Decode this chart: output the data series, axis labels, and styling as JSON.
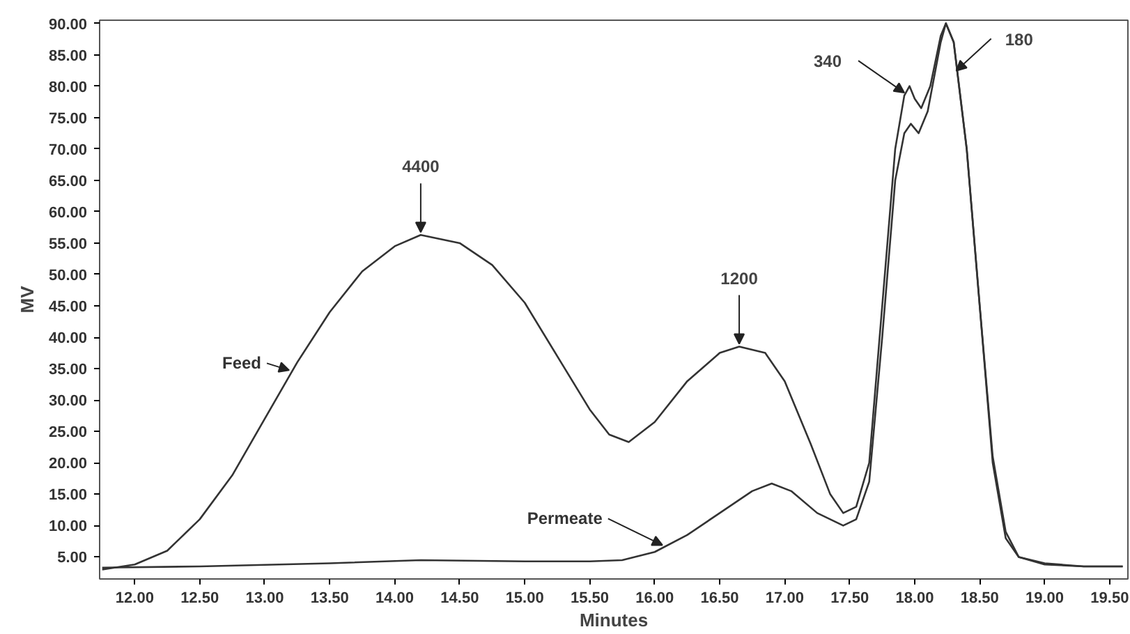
{
  "chart_data": {
    "type": "line",
    "xlabel": "Minutes",
    "ylabel": "MV",
    "xlim": [
      11.73,
      19.64
    ],
    "ylim": [
      1.5,
      90.5
    ],
    "xticks": [
      {
        "value": 12,
        "label": "12.00"
      },
      {
        "value": 12.5,
        "label": "12.50"
      },
      {
        "value": 13,
        "label": "13.00"
      },
      {
        "value": 13.5,
        "label": "13.50"
      },
      {
        "value": 14,
        "label": "14.00"
      },
      {
        "value": 14.5,
        "label": "14.50"
      },
      {
        "value": 15,
        "label": "15.00"
      },
      {
        "value": 15.5,
        "label": "15.50"
      },
      {
        "value": 16,
        "label": "16.00"
      },
      {
        "value": 16.5,
        "label": "16.50"
      },
      {
        "value": 17,
        "label": "17.00"
      },
      {
        "value": 17.5,
        "label": "17.50"
      },
      {
        "value": 18,
        "label": "18.00"
      },
      {
        "value": 18.5,
        "label": "18.50"
      },
      {
        "value": 19,
        "label": "19.00"
      },
      {
        "value": 19.5,
        "label": "19.50"
      }
    ],
    "yticks": [
      {
        "value": 5,
        "label": "5.00"
      },
      {
        "value": 10,
        "label": "10.00"
      },
      {
        "value": 15,
        "label": "15.00"
      },
      {
        "value": 20,
        "label": "20.00"
      },
      {
        "value": 25,
        "label": "25.00"
      },
      {
        "value": 30,
        "label": "30.00"
      },
      {
        "value": 35,
        "label": "35.00"
      },
      {
        "value": 40,
        "label": "40.00"
      },
      {
        "value": 45,
        "label": "45.00"
      },
      {
        "value": 50,
        "label": "50.00"
      },
      {
        "value": 55,
        "label": "55.00"
      },
      {
        "value": 60,
        "label": "60.00"
      },
      {
        "value": 65,
        "label": "65.00"
      },
      {
        "value": 70,
        "label": "70.00"
      },
      {
        "value": 75,
        "label": "75.00"
      },
      {
        "value": 80,
        "label": "80.00"
      },
      {
        "value": 85,
        "label": "85.00"
      },
      {
        "value": 90,
        "label": "90.00"
      }
    ],
    "grid": false,
    "legend": false,
    "series": [
      {
        "name": "Feed",
        "color": "#333333",
        "x": [
          11.75,
          12.0,
          12.25,
          12.5,
          12.75,
          13.0,
          13.25,
          13.5,
          13.75,
          14.0,
          14.2,
          14.5,
          14.75,
          15.0,
          15.25,
          15.5,
          15.65,
          15.8,
          16.0,
          16.25,
          16.5,
          16.65,
          16.85,
          17.0,
          17.2,
          17.35,
          17.45,
          17.55,
          17.65,
          17.75,
          17.85,
          17.92,
          17.96,
          18.0,
          18.05,
          18.12,
          18.2,
          18.24,
          18.3,
          18.4,
          18.5,
          18.6,
          18.7,
          18.8,
          19.0,
          19.3,
          19.6
        ],
        "values": [
          3.0,
          3.8,
          6,
          11,
          18,
          27,
          36,
          44,
          50.5,
          54.5,
          56.3,
          55,
          51.5,
          45.5,
          37,
          28.5,
          24.5,
          23.3,
          26.5,
          33,
          37.5,
          38.5,
          37.5,
          33,
          23,
          15,
          12,
          13,
          20,
          45,
          70,
          78.5,
          80,
          78,
          76.5,
          80,
          88,
          90,
          87,
          70,
          45,
          20,
          8,
          5,
          3.8,
          3.5,
          3.5
        ]
      },
      {
        "name": "Permeate",
        "color": "#333333",
        "x": [
          11.75,
          12.5,
          13.5,
          14.2,
          15.0,
          15.5,
          15.75,
          16.0,
          16.25,
          16.5,
          16.75,
          16.9,
          17.05,
          17.25,
          17.45,
          17.55,
          17.65,
          17.75,
          17.85,
          17.92,
          17.97,
          18.03,
          18.1,
          18.2,
          18.24,
          18.3,
          18.4,
          18.5,
          18.6,
          18.7,
          18.8,
          19.0,
          19.3,
          19.6
        ],
        "values": [
          3.3,
          3.5,
          4.0,
          4.5,
          4.3,
          4.3,
          4.5,
          5.8,
          8.5,
          12,
          15.5,
          16.7,
          15.5,
          12,
          10,
          11,
          17,
          40,
          65,
          72.5,
          74,
          72.5,
          76,
          87,
          90,
          87,
          70,
          45,
          21,
          9,
          5,
          4,
          3.5,
          3.5
        ]
      }
    ],
    "annotations": [
      {
        "text": "4400",
        "x": 14.2,
        "y": 56.3
      },
      {
        "text": "1200",
        "x": 16.65,
        "y": 38.5
      },
      {
        "text": "340",
        "x": 17.92,
        "y": 78.5
      },
      {
        "text": "180",
        "x": 18.32,
        "y": 82
      }
    ]
  }
}
